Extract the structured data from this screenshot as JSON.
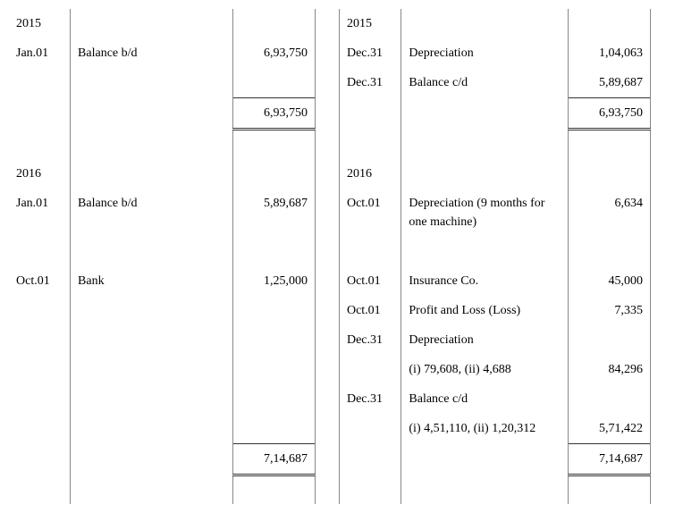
{
  "y2015": {
    "left": {
      "year": "2015",
      "r1": {
        "date": "Jan.01",
        "desc": "Balance b/d",
        "amt": "6,93,750"
      },
      "total": "6,93,750"
    },
    "right": {
      "year": "2015",
      "r1": {
        "date": "Dec.31",
        "desc": "Depreciation",
        "amt": "1,04,063"
      },
      "r2": {
        "date": "Dec.31",
        "desc": "Balance c/d",
        "amt": "5,89,687"
      },
      "total": "6,93,750"
    }
  },
  "y2016": {
    "left": {
      "year": "2016",
      "r1": {
        "date": "Jan.01",
        "desc": "Balance b/d",
        "amt": "5,89,687"
      },
      "r2": {
        "date": "Oct.01",
        "desc": "Bank",
        "amt": "1,25,000"
      },
      "total": "7,14,687"
    },
    "right": {
      "year": "2016",
      "r1": {
        "date": "Oct.01",
        "desc": "Depreciation (9 months for one machine)",
        "amt": "6,634"
      },
      "r2": {
        "date": "Oct.01",
        "desc": "Insurance Co.",
        "amt": "45,000"
      },
      "r3": {
        "date": "Oct.01",
        "desc": "Profit and Loss (Loss)",
        "amt": "7,335"
      },
      "r4": {
        "date": "Dec.31",
        "desc": "Depreciation",
        "sub": "(i) 79,608, (ii) 4,688",
        "amt": "84,296"
      },
      "r5": {
        "date": "Dec.31",
        "desc": "Balance c/d",
        "sub": "(i) 4,51,110, (ii) 1,20,312",
        "amt": "5,71,422"
      },
      "total": "7,14,687"
    }
  }
}
